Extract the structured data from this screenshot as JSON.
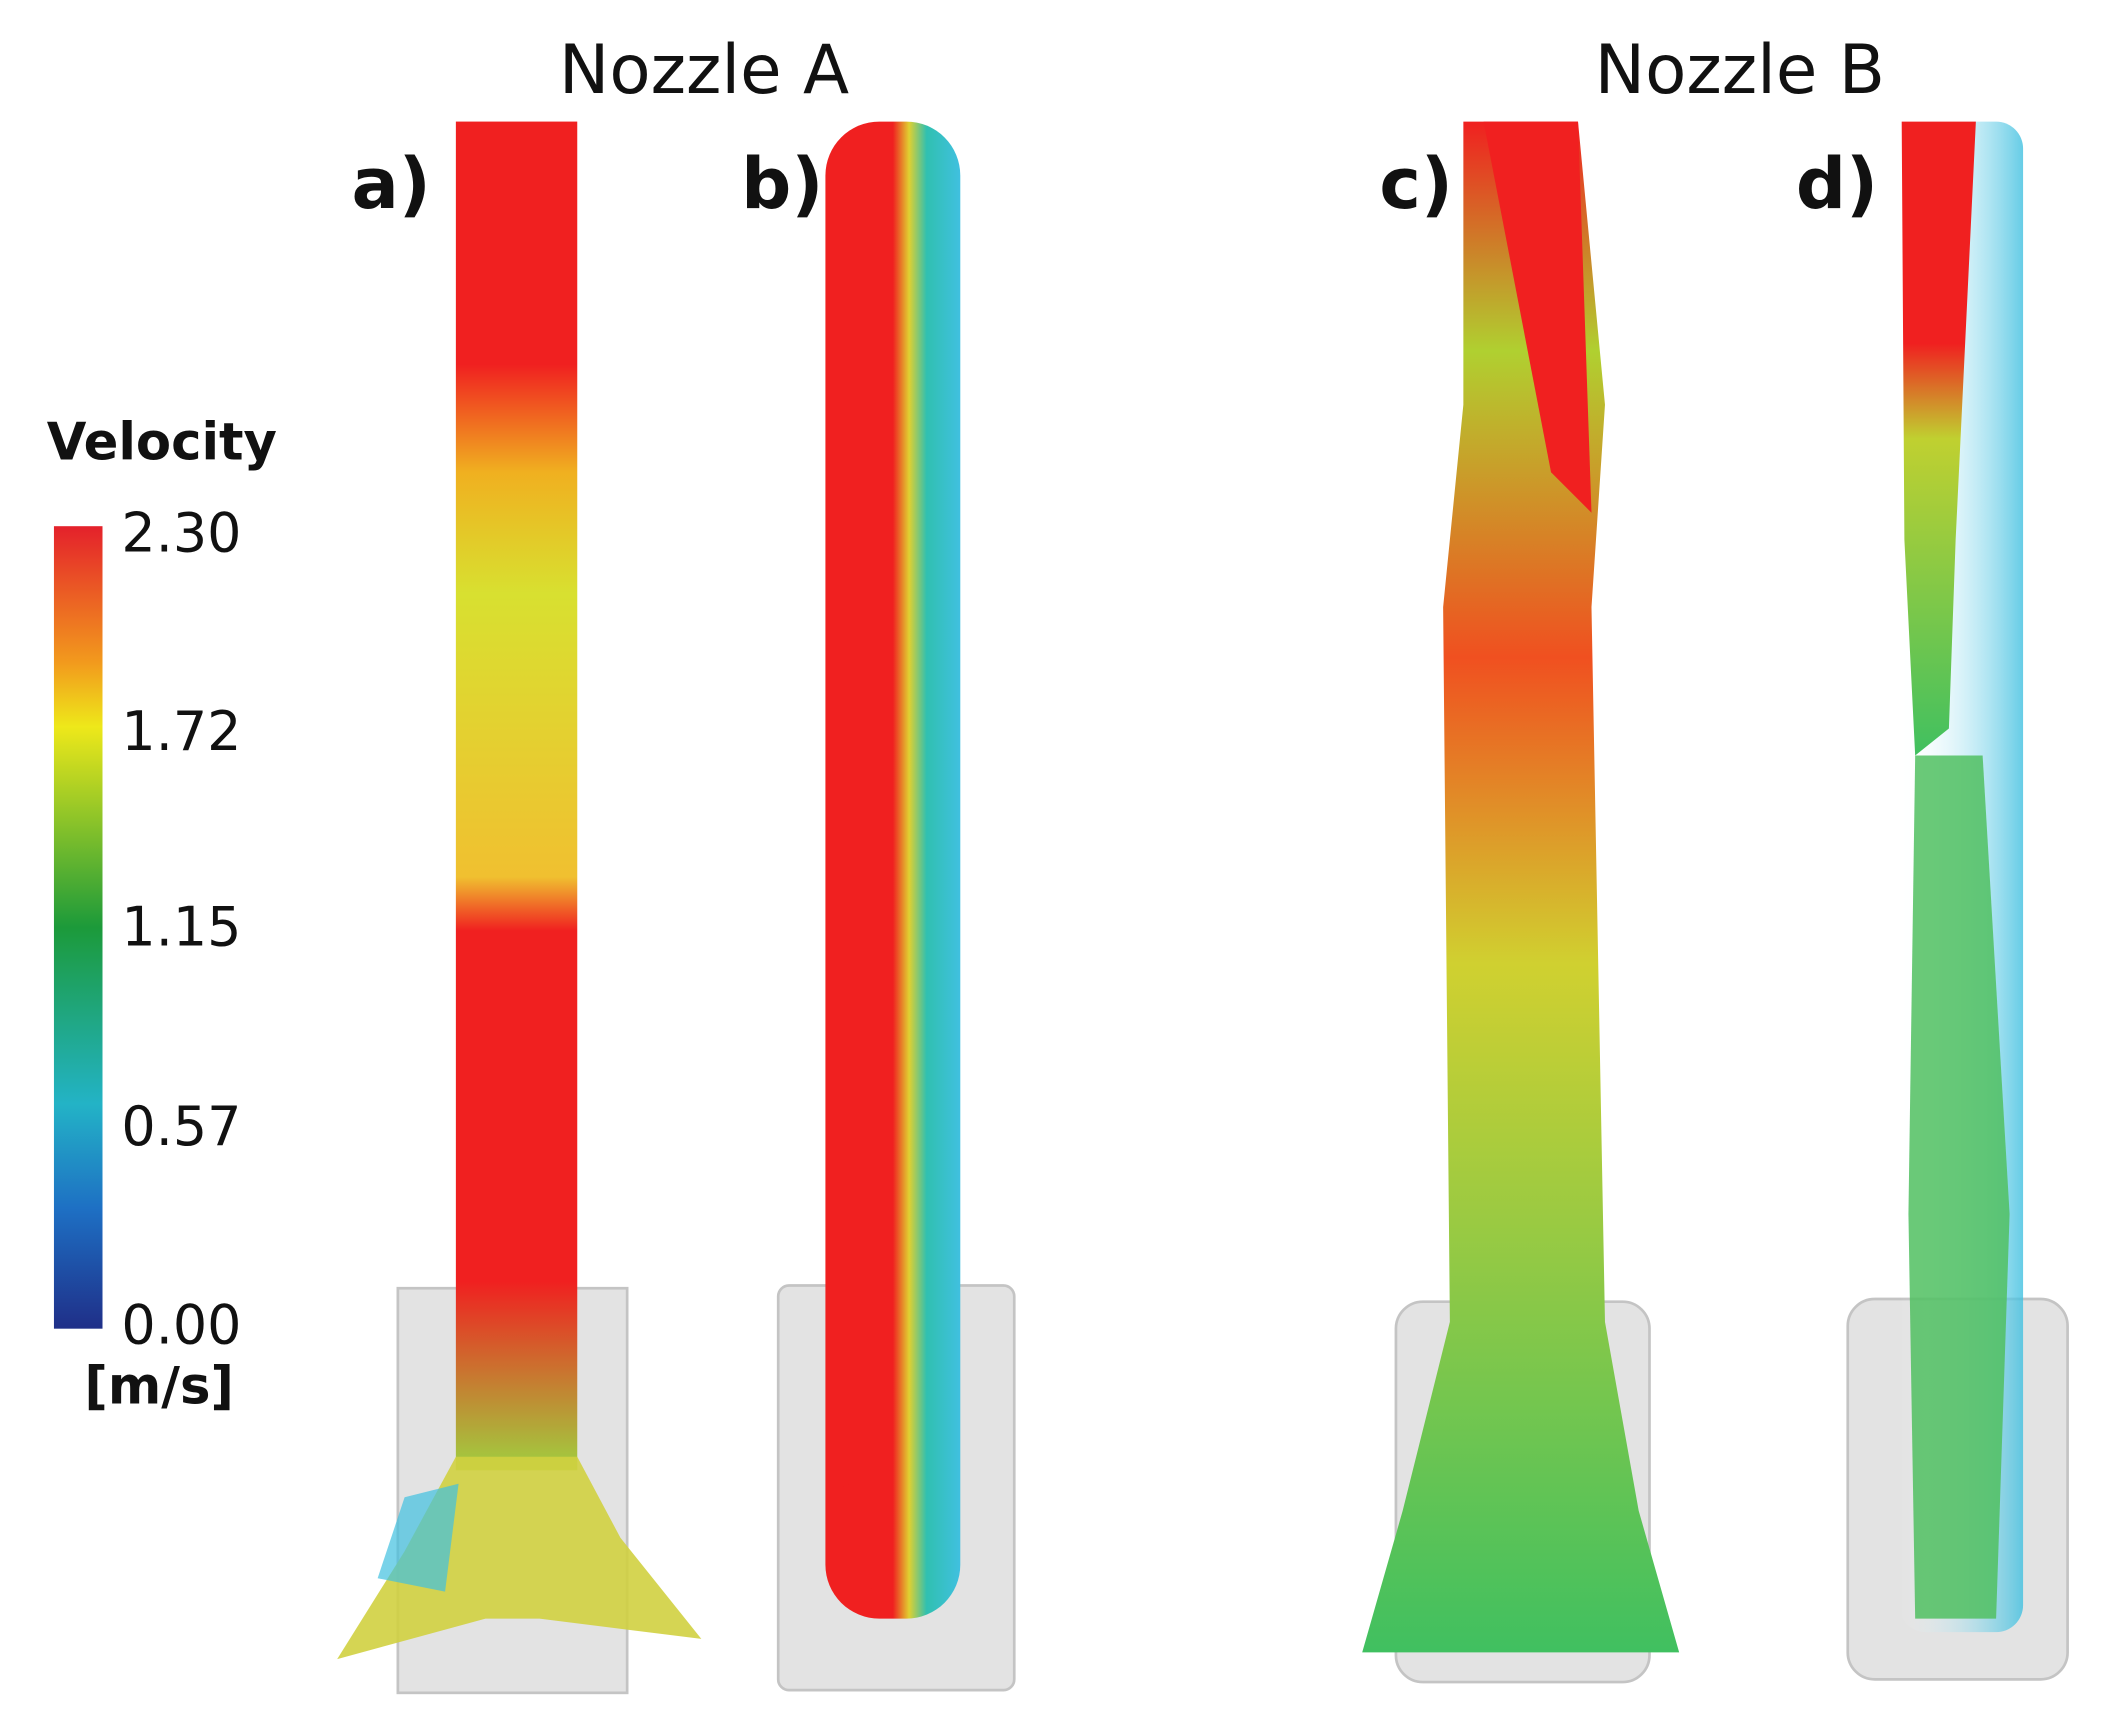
{
  "header": {
    "titles": [
      "Nozzle A",
      "Nozzle B"
    ]
  },
  "panels": {
    "labels": [
      "a)",
      "b)",
      "c)",
      "d)"
    ]
  },
  "colorbar": {
    "title": "Velocity",
    "unit": "[m/s]",
    "ticks": [
      "2.30",
      "1.72",
      "1.15",
      "0.57",
      "0.00"
    ]
  }
}
